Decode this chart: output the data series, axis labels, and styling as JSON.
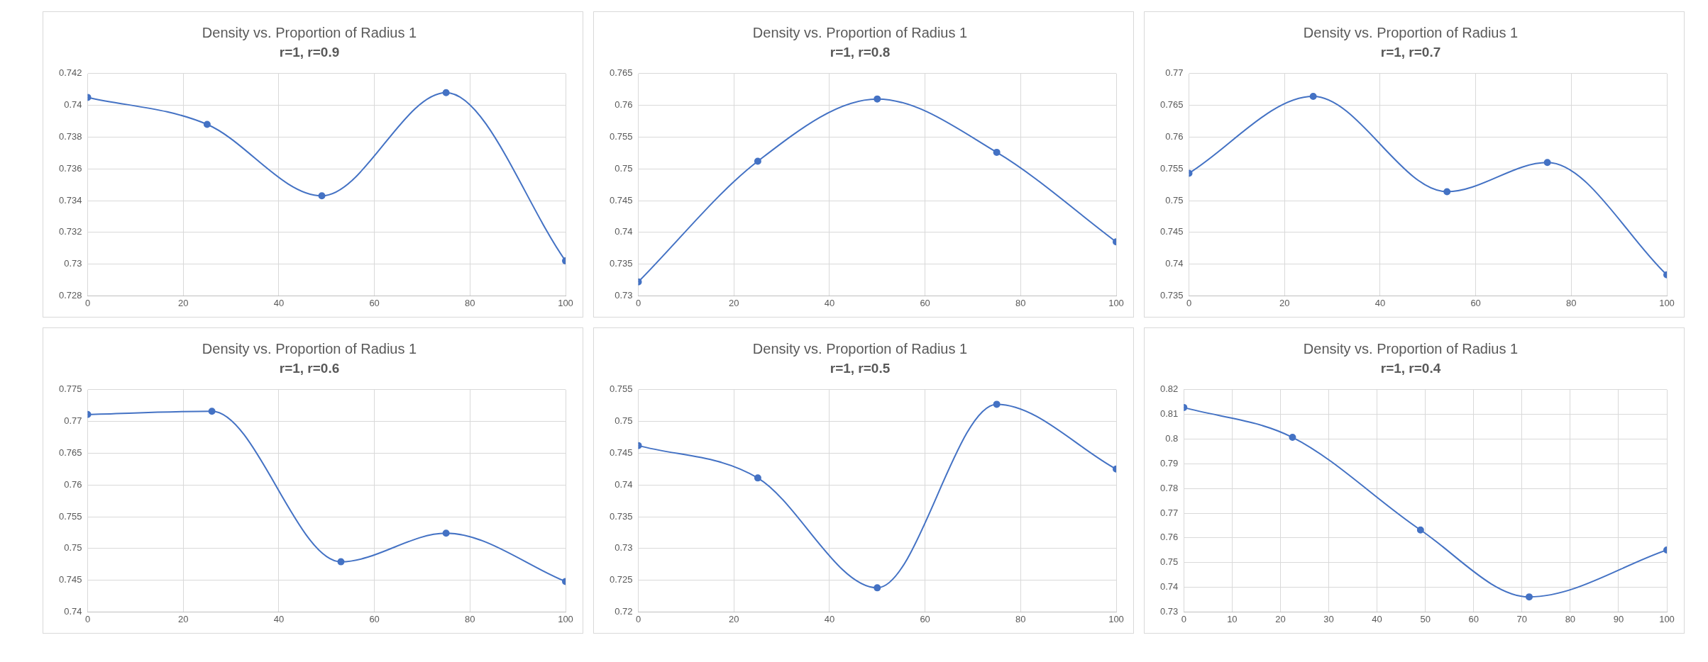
{
  "chart_data": [
    {
      "type": "line",
      "title": "Density vs. Proportion of Radius 1",
      "subtitle": "r=1, r=0.9",
      "x": [
        0,
        25,
        49,
        75,
        100
      ],
      "series": [
        {
          "color": "#4472c4",
          "values": [
            0.7405,
            0.7388,
            0.7343,
            0.7408,
            0.7302
          ]
        }
      ],
      "xlim": [
        0,
        100
      ],
      "xticks": [
        0,
        20,
        40,
        60,
        80,
        100
      ],
      "ylim": [
        0.728,
        0.742
      ],
      "yticks": [
        0.728,
        0.73,
        0.732,
        0.734,
        0.736,
        0.738,
        0.74,
        0.742
      ],
      "grid": true,
      "legend": false,
      "marker": "circle"
    },
    {
      "type": "line",
      "title": "Density vs. Proportion of Radius 1",
      "subtitle": "r=1, r=0.8",
      "x": [
        0,
        25,
        50,
        75,
        100
      ],
      "series": [
        {
          "color": "#4472c4",
          "values": [
            0.7322,
            0.7512,
            0.761,
            0.7526,
            0.7385
          ]
        }
      ],
      "xlim": [
        0,
        100
      ],
      "xticks": [
        0,
        20,
        40,
        60,
        80,
        100
      ],
      "ylim": [
        0.73,
        0.765
      ],
      "yticks": [
        0.73,
        0.735,
        0.74,
        0.745,
        0.75,
        0.755,
        0.76,
        0.765
      ],
      "grid": true,
      "legend": false,
      "marker": "circle"
    },
    {
      "type": "line",
      "title": "Density vs. Proportion of Radius 1",
      "subtitle": "r=1, r=0.7",
      "x": [
        0,
        26,
        54,
        75,
        100
      ],
      "series": [
        {
          "color": "#4472c4",
          "values": [
            0.7543,
            0.7664,
            0.7514,
            0.756,
            0.7383
          ]
        }
      ],
      "xlim": [
        0,
        100
      ],
      "xticks": [
        0,
        20,
        40,
        60,
        80,
        100
      ],
      "ylim": [
        0.735,
        0.77
      ],
      "yticks": [
        0.735,
        0.74,
        0.745,
        0.75,
        0.755,
        0.76,
        0.765,
        0.77
      ],
      "grid": true,
      "legend": false,
      "marker": "circle"
    },
    {
      "type": "line",
      "title": "Density vs. Proportion of Radius 1",
      "subtitle": "r=1, r=0.6",
      "x": [
        0,
        26,
        53,
        75,
        100
      ],
      "series": [
        {
          "color": "#4472c4",
          "values": [
            0.7711,
            0.7716,
            0.7479,
            0.7524,
            0.7448
          ]
        }
      ],
      "xlim": [
        0,
        100
      ],
      "xticks": [
        0,
        20,
        40,
        60,
        80,
        100
      ],
      "ylim": [
        0.74,
        0.775
      ],
      "yticks": [
        0.74,
        0.745,
        0.75,
        0.755,
        0.76,
        0.765,
        0.77,
        0.775
      ],
      "grid": true,
      "legend": false,
      "marker": "circle"
    },
    {
      "type": "line",
      "title": "Density vs. Proportion of Radius 1",
      "subtitle": "r=1, r=0.5",
      "x": [
        0,
        25,
        50,
        75,
        100
      ],
      "series": [
        {
          "color": "#4472c4",
          "values": [
            0.7462,
            0.7411,
            0.7238,
            0.7527,
            0.7425
          ]
        }
      ],
      "xlim": [
        0,
        100
      ],
      "xticks": [
        0,
        20,
        40,
        60,
        80,
        100
      ],
      "ylim": [
        0.72,
        0.755
      ],
      "yticks": [
        0.72,
        0.725,
        0.73,
        0.735,
        0.74,
        0.745,
        0.75,
        0.755
      ],
      "grid": true,
      "legend": false,
      "marker": "circle"
    },
    {
      "type": "line",
      "title": "Density vs. Proportion of Radius 1",
      "subtitle": "r=1, r=0.4",
      "x": [
        0,
        22.5,
        49,
        71.5,
        100
      ],
      "series": [
        {
          "color": "#4472c4",
          "values": [
            0.8128,
            0.8007,
            0.7632,
            0.7361,
            0.7551
          ]
        }
      ],
      "xlim": [
        0,
        100
      ],
      "xticks": [
        0,
        10,
        20,
        30,
        40,
        50,
        60,
        70,
        80,
        90,
        100
      ],
      "ylim": [
        0.73,
        0.82
      ],
      "yticks": [
        0.73,
        0.74,
        0.75,
        0.76,
        0.77,
        0.78,
        0.79,
        0.8,
        0.81,
        0.82
      ],
      "grid": true,
      "legend": false,
      "marker": "circle"
    }
  ]
}
